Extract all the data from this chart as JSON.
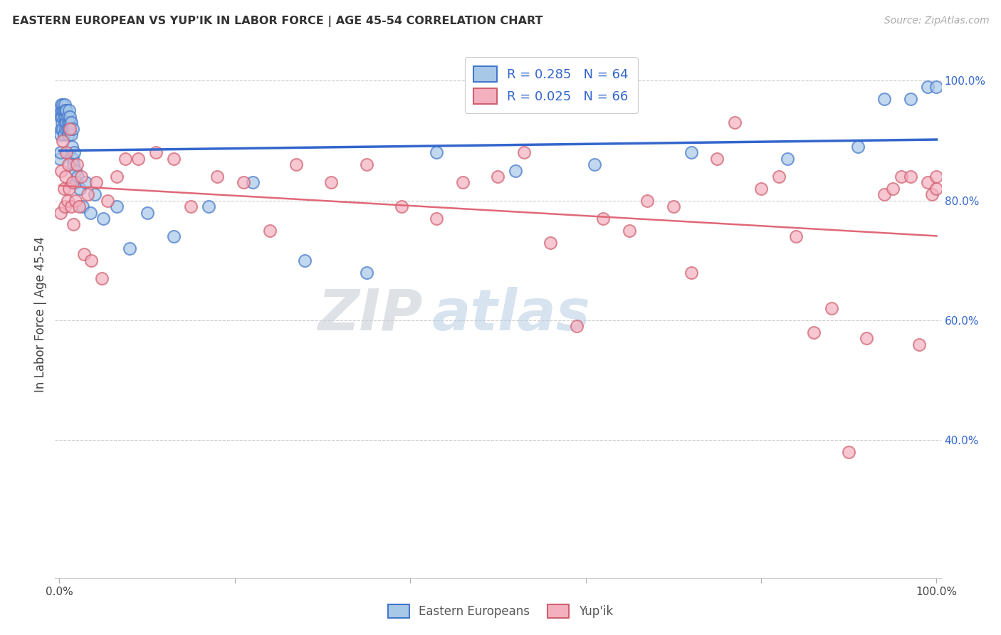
{
  "title": "EASTERN EUROPEAN VS YUP'IK IN LABOR FORCE | AGE 45-54 CORRELATION CHART",
  "source": "Source: ZipAtlas.com",
  "ylabel": "In Labor Force | Age 45-54",
  "xlim": [
    -0.005,
    1.005
  ],
  "ylim": [
    0.17,
    1.05
  ],
  "blue_R": "0.285",
  "blue_N": "64",
  "pink_R": "0.025",
  "pink_N": "66",
  "blue_fill": "#a8c8e8",
  "blue_edge": "#4477cc",
  "pink_fill": "#f5b0c0",
  "pink_edge": "#d06070",
  "blue_line": "#3366cc",
  "pink_line": "#e06878",
  "legend_blue": "Eastern Europeans",
  "legend_pink": "Yup'ik",
  "watermark_ZIP": "ZIP",
  "watermark_atlas": "atlas",
  "grid_color": "#cccccc",
  "y_ticks": [
    0.4,
    0.6,
    0.8,
    1.0
  ],
  "y_tick_labels": [
    "40.0%",
    "60.0%",
    "80.0%",
    "100.0%"
  ],
  "x_ticks": [
    0.0,
    0.2,
    0.4,
    0.6,
    0.8,
    1.0
  ],
  "x_tick_labels": [
    "0.0%",
    "",
    "",
    "",
    "",
    "100.0%"
  ],
  "blue_x": [
    0.0005,
    0.001,
    0.001,
    0.0015,
    0.002,
    0.002,
    0.002,
    0.003,
    0.003,
    0.004,
    0.004,
    0.004,
    0.005,
    0.005,
    0.005,
    0.006,
    0.006,
    0.007,
    0.007,
    0.007,
    0.008,
    0.008,
    0.009,
    0.009,
    0.01,
    0.01,
    0.011,
    0.011,
    0.012,
    0.012,
    0.013,
    0.013,
    0.014,
    0.015,
    0.015,
    0.016,
    0.017,
    0.018,
    0.019,
    0.021,
    0.023,
    0.026,
    0.03,
    0.035,
    0.04,
    0.05,
    0.065,
    0.08,
    0.1,
    0.13,
    0.17,
    0.22,
    0.28,
    0.35,
    0.43,
    0.52,
    0.61,
    0.72,
    0.83,
    0.91,
    0.94,
    0.97,
    0.99,
    1.0
  ],
  "blue_y": [
    0.87,
    0.91,
    0.94,
    0.88,
    0.92,
    0.95,
    0.96,
    0.93,
    0.94,
    0.92,
    0.95,
    0.96,
    0.91,
    0.94,
    0.95,
    0.93,
    0.96,
    0.92,
    0.94,
    0.95,
    0.93,
    0.95,
    0.92,
    0.94,
    0.91,
    0.93,
    0.92,
    0.95,
    0.93,
    0.94,
    0.91,
    0.93,
    0.89,
    0.87,
    0.92,
    0.86,
    0.88,
    0.85,
    0.83,
    0.84,
    0.82,
    0.79,
    0.83,
    0.78,
    0.81,
    0.77,
    0.79,
    0.72,
    0.78,
    0.74,
    0.79,
    0.83,
    0.7,
    0.68,
    0.88,
    0.85,
    0.86,
    0.88,
    0.87,
    0.89,
    0.97,
    0.97,
    0.99,
    0.99
  ],
  "pink_x": [
    0.001,
    0.002,
    0.004,
    0.005,
    0.006,
    0.007,
    0.008,
    0.009,
    0.01,
    0.011,
    0.012,
    0.013,
    0.015,
    0.016,
    0.018,
    0.02,
    0.022,
    0.025,
    0.028,
    0.032,
    0.036,
    0.042,
    0.048,
    0.055,
    0.065,
    0.075,
    0.09,
    0.11,
    0.13,
    0.15,
    0.18,
    0.21,
    0.24,
    0.27,
    0.31,
    0.35,
    0.39,
    0.43,
    0.46,
    0.5,
    0.53,
    0.56,
    0.59,
    0.62,
    0.65,
    0.67,
    0.7,
    0.72,
    0.75,
    0.77,
    0.8,
    0.82,
    0.84,
    0.86,
    0.88,
    0.9,
    0.92,
    0.94,
    0.95,
    0.96,
    0.97,
    0.98,
    0.99,
    0.995,
    1.0,
    1.0
  ],
  "pink_y": [
    0.78,
    0.85,
    0.9,
    0.82,
    0.79,
    0.84,
    0.88,
    0.8,
    0.86,
    0.82,
    0.92,
    0.79,
    0.83,
    0.76,
    0.8,
    0.86,
    0.79,
    0.84,
    0.71,
    0.81,
    0.7,
    0.83,
    0.67,
    0.8,
    0.84,
    0.87,
    0.87,
    0.88,
    0.87,
    0.79,
    0.84,
    0.83,
    0.75,
    0.86,
    0.83,
    0.86,
    0.79,
    0.77,
    0.83,
    0.84,
    0.88,
    0.73,
    0.59,
    0.77,
    0.75,
    0.8,
    0.79,
    0.68,
    0.87,
    0.93,
    0.82,
    0.84,
    0.74,
    0.58,
    0.62,
    0.38,
    0.57,
    0.81,
    0.82,
    0.84,
    0.84,
    0.56,
    0.83,
    0.81,
    0.82,
    0.84
  ]
}
